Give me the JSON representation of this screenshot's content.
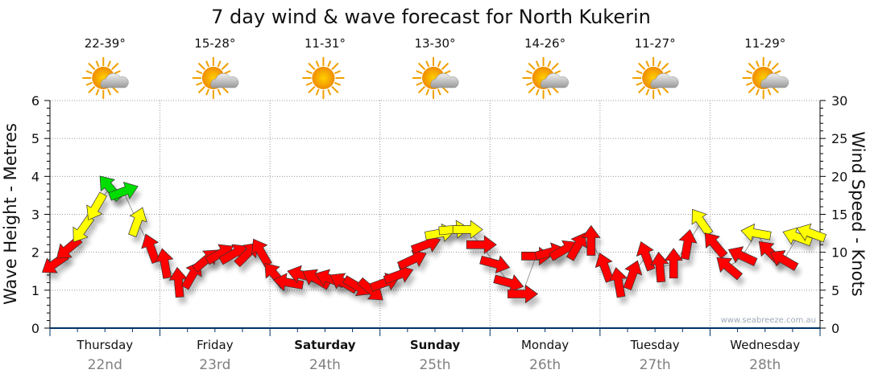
{
  "chart_data": {
    "type": "scatter",
    "title": "7 day wind & wave forecast for North Kukerin",
    "ylabel_left": "Wave Height - Metres",
    "ylabel_right": "Wind Speed - Knots",
    "ylim_left": [
      0,
      6
    ],
    "ylim_right": [
      0,
      30
    ],
    "left_ticks": [
      "0",
      "1",
      "2",
      "3",
      "4",
      "5",
      "6"
    ],
    "right_ticks": [
      "0",
      "5",
      "10",
      "15",
      "20",
      "25",
      "30"
    ],
    "grid": true,
    "watermark": "www.seabreeze.com.au",
    "days": [
      {
        "name": "Thursday",
        "date": "22nd",
        "temp": "22-39°",
        "icon": "sun-cloud-icon",
        "bold": false
      },
      {
        "name": "Friday",
        "date": "23rd",
        "temp": "15-28°",
        "icon": "sun-cloud-icon",
        "bold": false
      },
      {
        "name": "Saturday",
        "date": "24th",
        "temp": "11-31°",
        "icon": "sun-icon",
        "bold": true
      },
      {
        "name": "Sunday",
        "date": "25th",
        "temp": "13-30°",
        "icon": "sun-cloud-icon",
        "bold": true
      },
      {
        "name": "Monday",
        "date": "26th",
        "temp": "14-26°",
        "icon": "sun-cloud-icon",
        "bold": false
      },
      {
        "name": "Tuesday",
        "date": "27th",
        "temp": "11-27°",
        "icon": "sun-cloud-icon",
        "bold": false
      },
      {
        "name": "Wednesday",
        "date": "28th",
        "temp": "11-29°",
        "icon": "sun-cloud-icon",
        "bold": false
      }
    ],
    "wind_interval_hours": 3,
    "wind_knots": [
      8.5,
      10.5,
      13,
      16,
      18.5,
      18,
      14,
      10.5,
      8.5,
      6,
      7,
      9,
      9.8,
      9.8,
      9.8,
      10,
      7,
      6,
      7,
      6.5,
      6.5,
      6,
      5.5,
      5,
      6,
      7,
      9,
      11,
      12.5,
      13,
      13,
      11,
      8.5,
      6,
      4.5,
      9.5,
      10,
      10.3,
      10.8,
      11.5,
      8,
      6,
      7,
      9.5,
      8,
      8.5,
      11,
      14,
      11,
      8,
      9.5,
      12.5,
      10,
      9,
      12,
      12.5
    ],
    "wind_arrow_direction_deg": [
      215,
      220,
      235,
      240,
      130,
      20,
      70,
      110,
      100,
      95,
      60,
      40,
      30,
      30,
      45,
      120,
      130,
      170,
      165,
      150,
      160,
      150,
      -30,
      -40,
      20,
      20,
      25,
      20,
      10,
      5,
      0,
      0,
      -15,
      -15,
      0,
      0,
      15,
      30,
      60,
      90,
      110,
      100,
      70,
      110,
      95,
      90,
      80,
      125,
      130,
      140,
      155,
      170,
      135,
      150,
      160,
      160
    ],
    "colors": {
      "light": "#ff0000",
      "moderate": "#ffff00",
      "strong": "#00dd00",
      "axis": "#003366",
      "date": "#808080"
    },
    "color_thresholds_knots": [
      12,
      18
    ]
  }
}
